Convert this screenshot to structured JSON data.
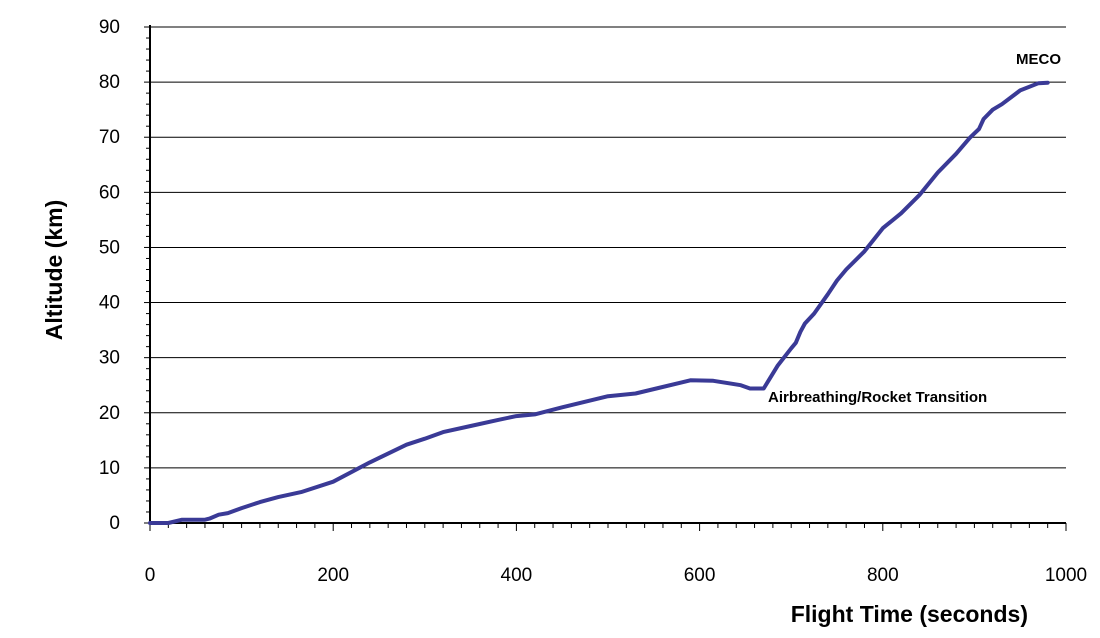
{
  "chart_data": {
    "type": "line",
    "title": "",
    "xlabel": "Flight Time (seconds)",
    "ylabel": "Altitude (km)",
    "xlim": [
      0,
      1000
    ],
    "ylim": [
      0,
      90
    ],
    "x_ticks": [
      0,
      200,
      400,
      600,
      800,
      1000
    ],
    "y_ticks": [
      0,
      10,
      20,
      30,
      40,
      50,
      60,
      70,
      80,
      90
    ],
    "grid": "horizontal",
    "legend": "none",
    "colors": {
      "line": "#3a3a96",
      "grid": "#000000",
      "axis": "#000000"
    },
    "series": [
      {
        "x": [
          0,
          20,
          35,
          50,
          60,
          65,
          75,
          85,
          100,
          120,
          140,
          165,
          200,
          240,
          280,
          300,
          320,
          350,
          380,
          400,
          420,
          450,
          500,
          530,
          555,
          590,
          615,
          645,
          655,
          670,
          685,
          700,
          705,
          710,
          715,
          725,
          740,
          750,
          760,
          780,
          800,
          820,
          840,
          860,
          880,
          895,
          905,
          910,
          920,
          930,
          950,
          970,
          980
        ],
        "y": [
          0,
          0,
          0.6,
          0.6,
          0.6,
          0.8,
          1.5,
          1.8,
          2.7,
          3.8,
          4.7,
          5.6,
          7.5,
          11,
          14.2,
          15.3,
          16.5,
          17.6,
          18.7,
          19.4,
          19.7,
          21,
          23,
          23.5,
          24.5,
          25.9,
          25.8,
          25,
          24.4,
          24.4,
          28.5,
          31.7,
          32.7,
          34.7,
          36.2,
          38,
          41.5,
          44,
          46,
          49.3,
          53.5,
          56.2,
          59.5,
          63.6,
          67,
          69.9,
          71.5,
          73.3,
          75,
          76,
          78.5,
          79.8,
          79.9
        ]
      }
    ],
    "annotations": [
      {
        "text": "MECO",
        "x": 975,
        "y": 80
      },
      {
        "text": "Airbreathing/Rocket Transition",
        "x": 670,
        "y": 24.4
      }
    ]
  }
}
